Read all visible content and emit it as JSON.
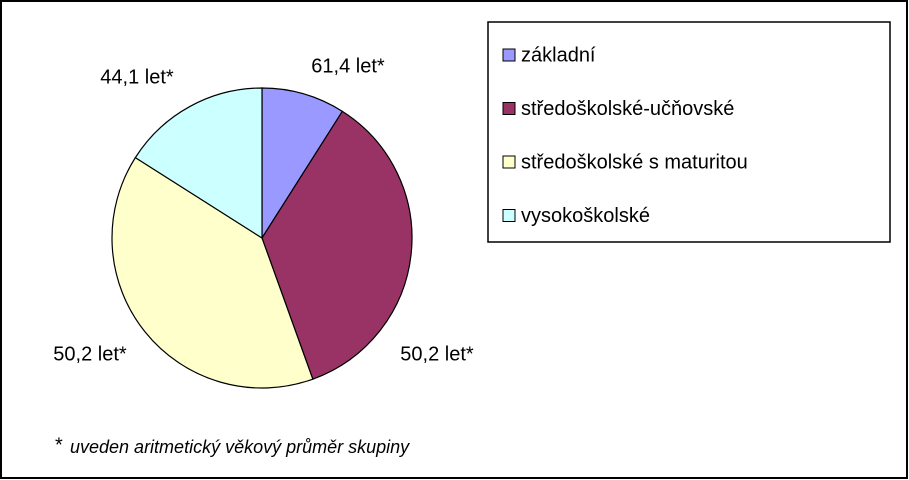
{
  "chart_data": {
    "type": "pie",
    "categories": [
      "základní",
      "středoškolské-učňovské",
      "středoškolské s maturitou",
      "vysokoškolské"
    ],
    "values": [
      9,
      35.5,
      39.5,
      16
    ],
    "colors": [
      "#9999ff",
      "#993366",
      "#ffffcc",
      "#ccffff"
    ],
    "data_labels": [
      "61,4 let*",
      "50,2 let*",
      "50,2 let*",
      "44,1 let*"
    ],
    "legend": "right",
    "footnote_mark": "*",
    "footnote": "uveden aritmetický věkový průměr skupiny"
  }
}
